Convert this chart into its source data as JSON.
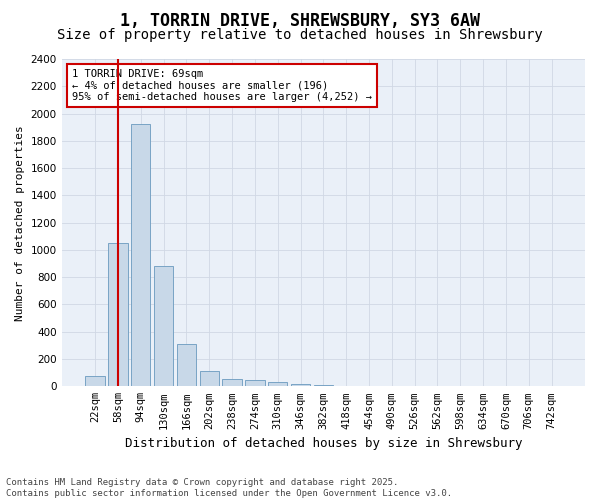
{
  "title": "1, TORRIN DRIVE, SHREWSBURY, SY3 6AW",
  "subtitle": "Size of property relative to detached houses in Shrewsbury",
  "xlabel": "Distribution of detached houses by size in Shrewsbury",
  "ylabel": "Number of detached properties",
  "bar_values": [
    75,
    1050,
    1920,
    880,
    310,
    110,
    55,
    45,
    30,
    15,
    8,
    5,
    3,
    2,
    2,
    1,
    1,
    1,
    0,
    0,
    0
  ],
  "bar_labels": [
    "22sqm",
    "58sqm",
    "94sqm",
    "130sqm",
    "166sqm",
    "202sqm",
    "238sqm",
    "274sqm",
    "310sqm",
    "346sqm",
    "382sqm",
    "418sqm",
    "454sqm",
    "490sqm",
    "526sqm",
    "562sqm",
    "598sqm",
    "634sqm",
    "670sqm",
    "706sqm",
    "742sqm"
  ],
  "bar_color": "#c8d8e8",
  "bar_edgecolor": "#6a9abf",
  "vline_x": 1,
  "vline_color": "#cc0000",
  "annotation_text": "1 TORRIN DRIVE: 69sqm\n← 4% of detached houses are smaller (196)\n95% of semi-detached houses are larger (4,252) →",
  "annotation_box_color": "#cc0000",
  "ylim": [
    0,
    2400
  ],
  "yticks": [
    0,
    200,
    400,
    600,
    800,
    1000,
    1200,
    1400,
    1600,
    1800,
    2000,
    2200,
    2400
  ],
  "grid_color": "#d0d8e4",
  "background_color": "#eaf0f8",
  "footnote": "Contains HM Land Registry data © Crown copyright and database right 2025.\nContains public sector information licensed under the Open Government Licence v3.0.",
  "title_fontsize": 12,
  "subtitle_fontsize": 10,
  "xlabel_fontsize": 9,
  "ylabel_fontsize": 8,
  "tick_fontsize": 7.5,
  "annot_fontsize": 7.5,
  "footnote_fontsize": 6.5
}
